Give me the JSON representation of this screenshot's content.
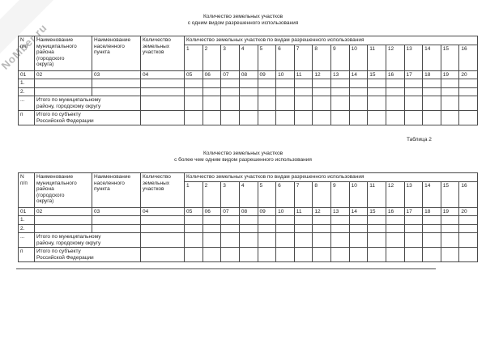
{
  "watermark": {
    "text": "NoMber.ru"
  },
  "captions": {
    "table2": "Таблица 2"
  },
  "tables": [
    {
      "title_lines": [
        "Количество земельных участков",
        "с одним видом разрешенного использования"
      ],
      "header": {
        "col_num": "N\nп/п",
        "col_district": "Наименование\nмуниципального\nрайона\n(городского\nокруга)",
        "col_settlement": "Наименование\nнаселенного\nпункта",
        "col_count": "Количество\nземельных\nучастков",
        "col_group": "Количество земельных участков по видам разрешенного использования",
        "sub_cols": [
          "1",
          "2",
          "3",
          "4",
          "5",
          "6",
          "7",
          "8",
          "9",
          "10",
          "11",
          "12",
          "13",
          "14",
          "15",
          "16"
        ]
      },
      "code_row": [
        "01",
        "02",
        "03",
        "04",
        "05",
        "06",
        "07",
        "08",
        "09",
        "10",
        "11",
        "12",
        "13",
        "14",
        "15",
        "16",
        "17",
        "18",
        "19",
        "20"
      ],
      "rows": [
        {
          "num": "1.",
          "type": "empty"
        },
        {
          "num": "2.",
          "type": "empty"
        },
        {
          "num": "...",
          "type": "total",
          "label": "Итого по муниципальному\nрайону, городскому округу"
        },
        {
          "num": "п",
          "type": "total",
          "label": "Итого по субъекту\nРоссийской Федерации"
        }
      ]
    },
    {
      "title_lines": [
        "Количество земельных участков",
        "с более чем одним видом разрешенного использования"
      ],
      "header": {
        "col_num": "N\nп/п",
        "col_district": "Наименование\nмуниципального\nрайона\n(городского\nокруга)",
        "col_settlement": "Наименование\nнаселенного\nпункта",
        "col_count": "Количество\nземельных\nучастков",
        "col_group": "Количество земельных участков по видам разрешенного использования",
        "sub_cols": [
          "1",
          "2",
          "3",
          "4",
          "5",
          "6",
          "7",
          "8",
          "9",
          "10",
          "11",
          "12",
          "13",
          "14",
          "15",
          "16"
        ]
      },
      "code_row": [
        "01",
        "02",
        "03",
        "04",
        "05",
        "06",
        "07",
        "08",
        "09",
        "10",
        "11",
        "12",
        "13",
        "14",
        "15",
        "16",
        "17",
        "18",
        "19",
        "20"
      ],
      "rows": [
        {
          "num": "1.",
          "type": "empty"
        },
        {
          "num": "2.",
          "type": "empty"
        },
        {
          "num": "...",
          "type": "total",
          "label": "Итого по муниципальному\nрайону, городскому округу"
        },
        {
          "num": "п",
          "type": "total",
          "label": "Итого по субъекту\nРоссийской Федерации"
        }
      ]
    }
  ]
}
